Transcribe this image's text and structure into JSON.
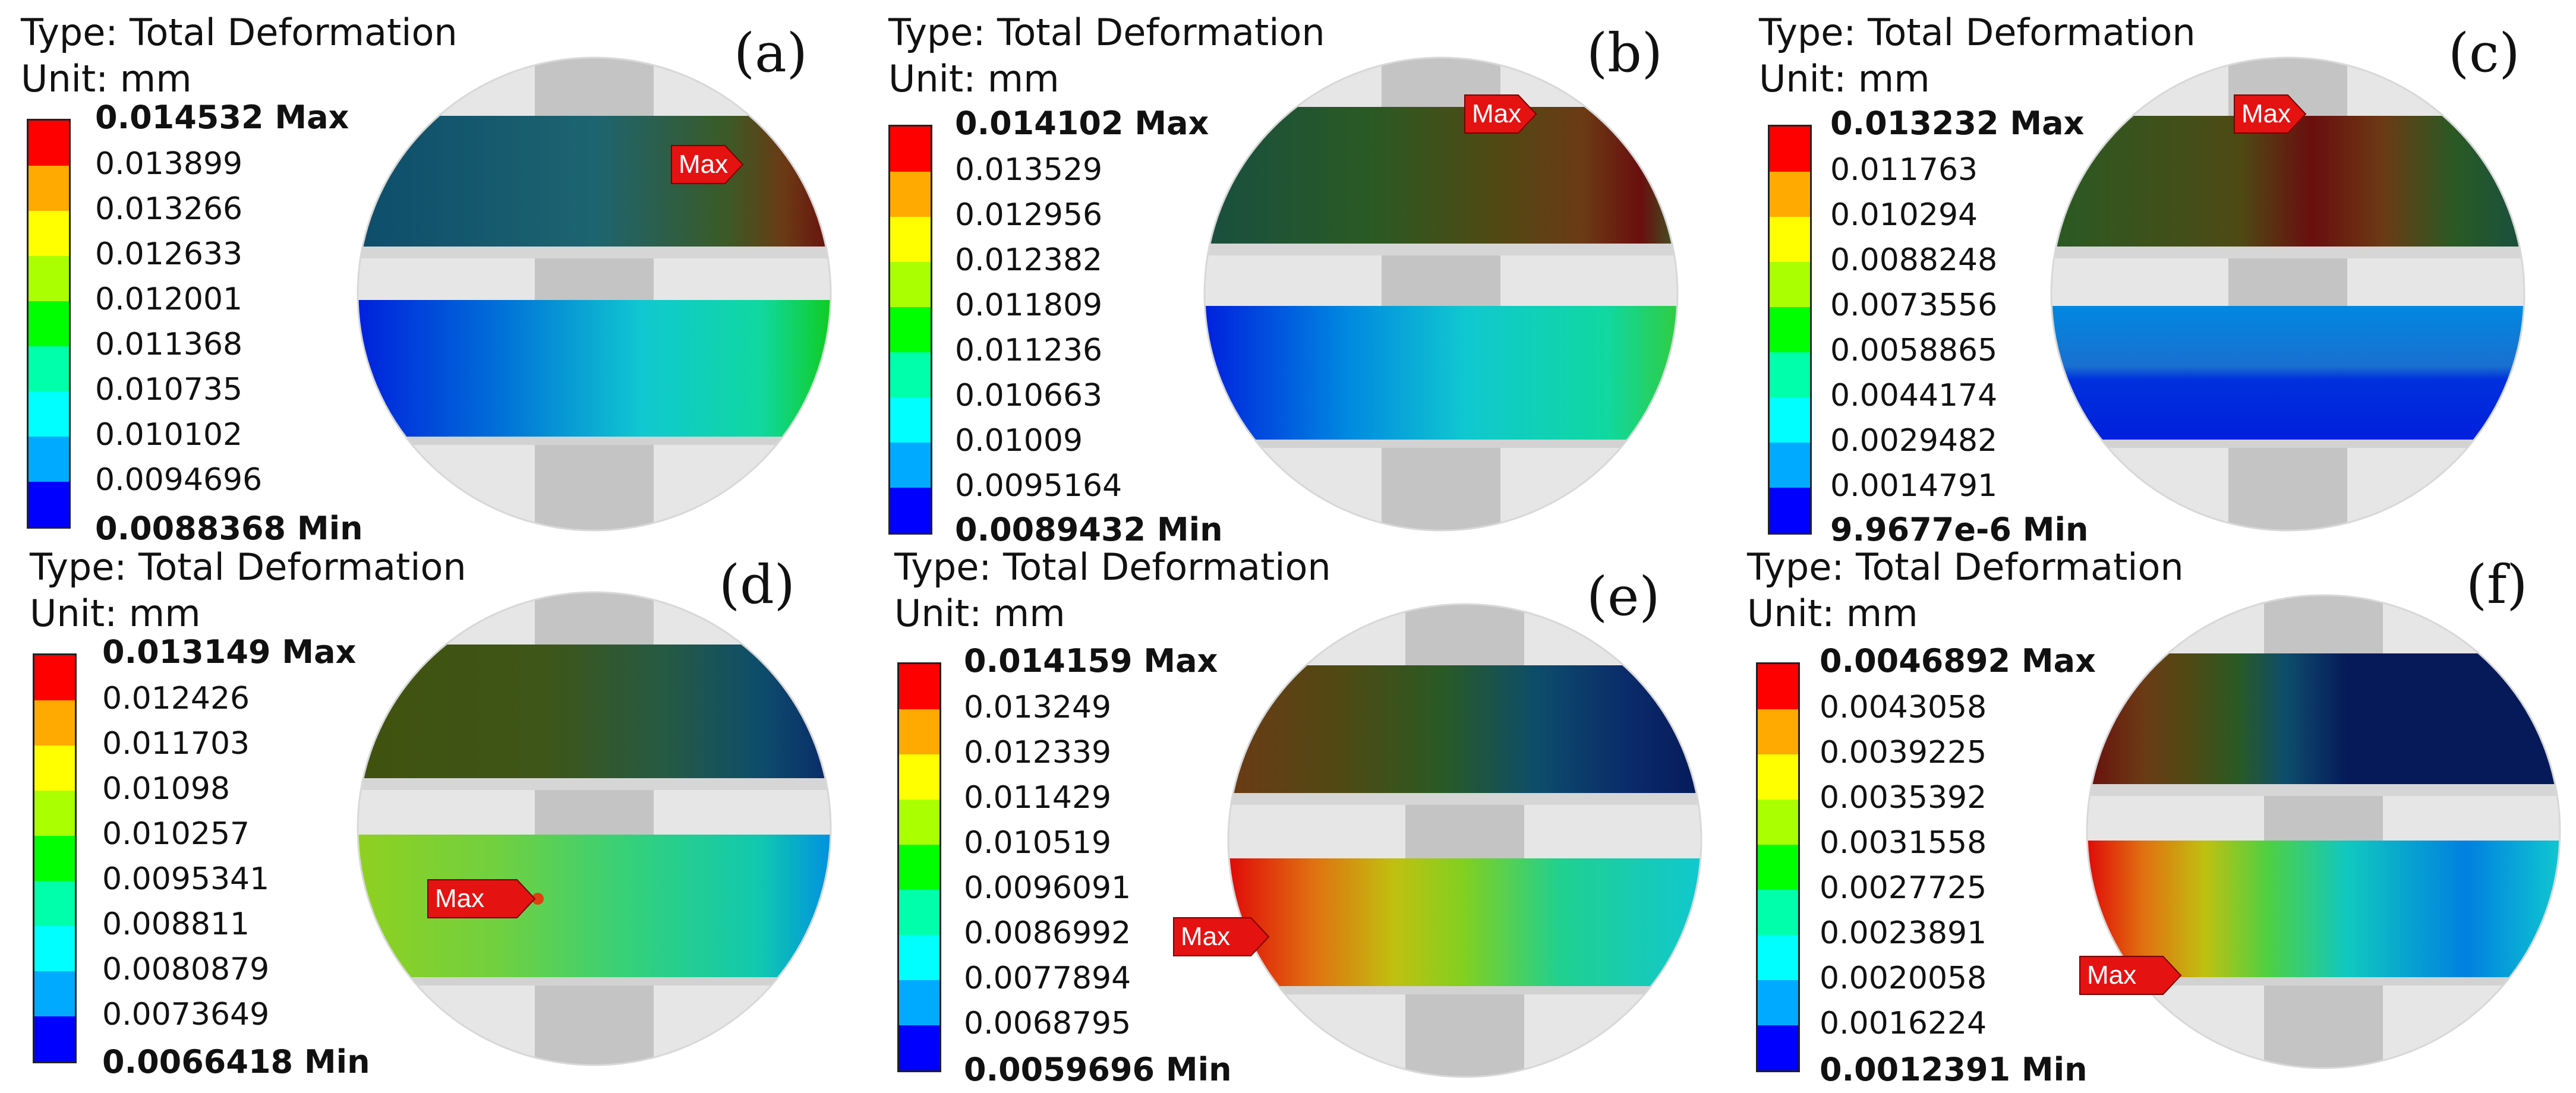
{
  "colors": [
    "#ff0000",
    "#ffaa00",
    "#ffff00",
    "#aaff00",
    "#00ff00",
    "#00ffaa",
    "#00ffff",
    "#00aaff",
    "#0000ff"
  ],
  "panels": [
    {
      "letter": "(a)",
      "type": "Type: Total Deformation",
      "unit": "Unit: mm",
      "max": "0.014532 Max",
      "values": [
        "0.013899",
        "0.013266",
        "0.012633",
        "0.012001",
        "0.011368",
        "0.010735",
        "0.010102",
        "0.0094696"
      ],
      "min": "0.0088368 Min",
      "marker": "Max"
    },
    {
      "letter": "(b)",
      "type": "Type: Total Deformation",
      "unit": "Unit: mm",
      "max": "0.014102 Max",
      "values": [
        "0.013529",
        "0.012956",
        "0.012382",
        "0.011809",
        "0.011236",
        "0.010663",
        "0.01009",
        "0.0095164"
      ],
      "min": "0.0089432 Min",
      "marker": "Max"
    },
    {
      "letter": "(c)",
      "type": "Type: Total Deformation",
      "unit": "Unit: mm",
      "max": "0.013232 Max",
      "values": [
        "0.011763",
        "0.010294",
        "0.0088248",
        "0.0073556",
        "0.0058865",
        "0.0044174",
        "0.0029482",
        "0.0014791"
      ],
      "min": "9.9677e-6 Min",
      "marker": "Max"
    },
    {
      "letter": "(d)",
      "type": "Type: Total Deformation",
      "unit": "Unit: mm",
      "max": "0.013149 Max",
      "values": [
        "0.012426",
        "0.011703",
        "0.01098",
        "0.010257",
        "0.0095341",
        "0.008811",
        "0.0080879",
        "0.0073649"
      ],
      "min": "0.0066418 Min",
      "marker": "Max"
    },
    {
      "letter": "(e)",
      "type": "Type: Total Deformation",
      "unit": "Unit: mm",
      "max": "0.014159 Max",
      "values": [
        "0.013249",
        "0.012339",
        "0.011429",
        "0.010519",
        "0.0096091",
        "0.0086992",
        "0.0077894",
        "0.0068795"
      ],
      "min": "0.0059696 Min",
      "marker": "Max"
    },
    {
      "letter": "(f)",
      "type": "Type: Total Deformation",
      "unit": "Unit: mm",
      "max": "0.0046892 Max",
      "values": [
        "0.0043058",
        "0.0039225",
        "0.0035392",
        "0.0031558",
        "0.0027725",
        "0.0023891",
        "0.0020058",
        "0.0016224"
      ],
      "min": "0.0012391 Min",
      "marker": "Max"
    }
  ]
}
